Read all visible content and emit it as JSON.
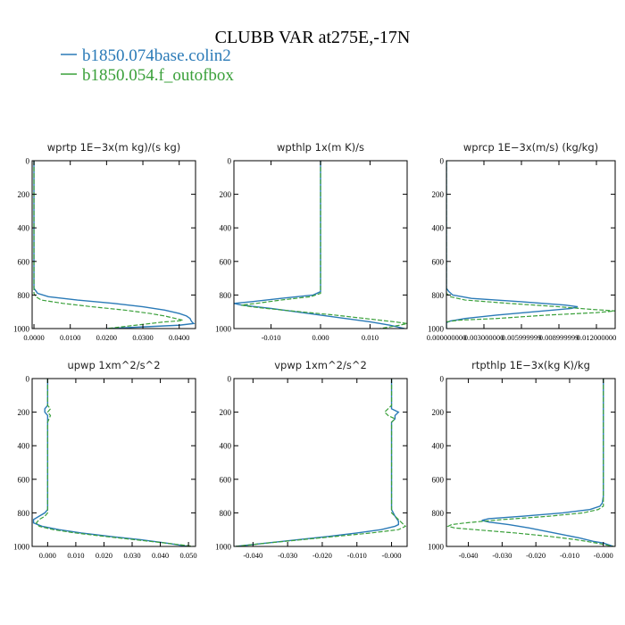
{
  "title": "CLUBB VAR at275E,-17N",
  "legend": [
    {
      "name": "b1850.074base.colin2",
      "color": "#2a7ab7"
    },
    {
      "name": "b1850.054.f_outofbox",
      "color": "#3aa03a"
    }
  ],
  "chart_data": [
    {
      "type": "line",
      "title": "wprtp  1E−3x(m kg)/(s kg)",
      "ylim": [
        1000,
        0
      ],
      "yticks": [
        "0",
        "200",
        "400",
        "600",
        "800",
        "1000"
      ],
      "xlim": [
        -0.0005,
        0.0445
      ],
      "xticks": [
        "0.0000",
        "0.0100",
        "0.0200",
        "0.0300",
        "0.0400"
      ],
      "xtick_values": [
        0,
        0.01,
        0.02,
        0.03,
        0.04
      ],
      "series": [
        {
          "name": "b1850.074base.colin2",
          "dash": false,
          "y": [
            0,
            200,
            400,
            600,
            760,
            775,
            790,
            810,
            830,
            850,
            870,
            890,
            910,
            925,
            940,
            950,
            960,
            970,
            980,
            990,
            1000
          ],
          "x": [
            0.0,
            0.0,
            0.0,
            0.0,
            0.0,
            0.0005,
            0.001,
            0.004,
            0.012,
            0.022,
            0.03,
            0.036,
            0.04,
            0.042,
            0.043,
            0.0432,
            0.0435,
            0.044,
            0.04,
            0.03,
            0.02
          ]
        },
        {
          "name": "b1850.054.f_outofbox",
          "dash": true,
          "y": [
            0,
            200,
            400,
            600,
            760,
            790,
            810,
            830,
            850,
            870,
            890,
            910,
            925,
            940,
            950,
            955,
            960,
            970,
            980,
            990,
            1000
          ],
          "x": [
            0.0,
            0.0,
            0.0,
            0.0,
            0.0,
            0.0,
            0.0005,
            0.002,
            0.008,
            0.016,
            0.025,
            0.032,
            0.036,
            0.039,
            0.041,
            0.0395,
            0.036,
            0.032,
            0.028,
            0.024,
            0.02
          ]
        }
      ]
    },
    {
      "type": "line",
      "title": "wpthlp  1x(m K)/s",
      "ylim": [
        1000,
        0
      ],
      "yticks": [
        "0",
        "200",
        "400",
        "600",
        "800",
        "1000"
      ],
      "xlim": [
        -0.0175,
        0.0175
      ],
      "xticks": [
        "-0.010",
        "0.000",
        "0.010"
      ],
      "xtick_values": [
        -0.01,
        0,
        0.01
      ],
      "series": [
        {
          "name": "b1850.074base.colin2",
          "dash": false,
          "y": [
            0,
            200,
            400,
            600,
            760,
            780,
            800,
            820,
            840,
            850,
            860,
            870,
            880,
            900,
            920,
            940,
            960,
            980,
            1000
          ],
          "x": [
            0.0,
            0.0,
            0.0,
            0.0,
            0.0,
            0.0,
            -0.0015,
            -0.008,
            -0.014,
            -0.0175,
            -0.016,
            -0.013,
            -0.01,
            -0.005,
            0.0,
            0.005,
            0.01,
            0.014,
            0.017
          ]
        },
        {
          "name": "b1850.054.f_outofbox",
          "dash": true,
          "y": [
            0,
            200,
            400,
            600,
            760,
            790,
            810,
            830,
            850,
            860,
            870,
            880,
            900,
            920,
            940,
            960,
            970,
            980,
            1000
          ],
          "x": [
            0.0,
            0.0,
            0.0,
            0.0,
            0.0,
            0.0,
            -0.002,
            -0.008,
            -0.013,
            -0.016,
            -0.014,
            -0.011,
            -0.004,
            0.003,
            0.009,
            0.015,
            0.0175,
            0.016,
            0.012
          ]
        }
      ]
    },
    {
      "type": "line",
      "title": "wprcp  1E−3x(m/s) (kg/kg)",
      "ylim": [
        1000,
        0
      ],
      "yticks": [
        "0",
        "200",
        "400",
        "600",
        "800",
        "1000"
      ],
      "xlim": [
        0.0,
        0.0135
      ],
      "xticks": [
        "0.000000000",
        "0.003000000",
        "0.005999999",
        "0.008999999",
        "0.012000000"
      ],
      "xtick_values": [
        0,
        0.003,
        0.006,
        0.009,
        0.012
      ],
      "series": [
        {
          "name": "b1850.074base.colin2",
          "dash": false,
          "y": [
            0,
            200,
            400,
            600,
            760,
            780,
            800,
            820,
            840,
            860,
            870,
            880,
            900,
            920,
            940,
            955,
            965,
            980,
            1000
          ],
          "x": [
            0.0,
            0.0,
            0.0,
            0.0,
            0.0,
            0.0002,
            0.0005,
            0.002,
            0.006,
            0.0095,
            0.0105,
            0.01,
            0.007,
            0.004,
            0.0015,
            0.0003,
            0.0,
            0.0,
            0.0
          ]
        },
        {
          "name": "b1850.054.f_outofbox",
          "dash": true,
          "y": [
            0,
            200,
            400,
            600,
            760,
            790,
            810,
            830,
            850,
            870,
            885,
            895,
            905,
            920,
            940,
            950,
            960,
            980,
            1000
          ],
          "x": [
            0.0,
            0.0,
            0.0,
            0.0,
            0.0,
            0.0,
            0.0003,
            0.0015,
            0.005,
            0.009,
            0.0115,
            0.0135,
            0.012,
            0.008,
            0.004,
            0.001,
            0.0,
            0.0,
            0.0
          ]
        }
      ]
    },
    {
      "type": "line",
      "title": "upwp  1xm^2/s^2",
      "ylim": [
        1000,
        0
      ],
      "yticks": [
        "0",
        "200",
        "400",
        "600",
        "800",
        "1000"
      ],
      "xlim": [
        -0.0055,
        0.0525
      ],
      "xticks": [
        "0.000",
        "0.010",
        "0.020",
        "0.030",
        "0.040",
        "0.050"
      ],
      "xtick_values": [
        0,
        0.01,
        0.02,
        0.03,
        0.04,
        0.05
      ],
      "series": [
        {
          "name": "b1850.074base.colin2",
          "dash": false,
          "y": [
            0,
            160,
            180,
            200,
            220,
            260,
            400,
            600,
            780,
            800,
            820,
            840,
            860,
            880,
            900,
            920,
            940,
            960,
            980,
            1000
          ],
          "x": [
            0.0,
            0.0,
            -0.001,
            -0.001,
            0.0,
            0.0,
            0.0,
            0.0,
            0.0,
            -0.001,
            -0.003,
            -0.005,
            -0.005,
            -0.002,
            0.004,
            0.012,
            0.022,
            0.033,
            0.042,
            0.05
          ]
        },
        {
          "name": "b1850.054.f_outofbox",
          "dash": true,
          "y": [
            0,
            160,
            180,
            200,
            220,
            260,
            400,
            600,
            800,
            820,
            840,
            860,
            880,
            900,
            920,
            940,
            960,
            980,
            1000
          ],
          "x": [
            0.0,
            0.0,
            0.001,
            0.0,
            0.001,
            0.0,
            0.0,
            0.0,
            0.0,
            -0.001,
            -0.003,
            -0.004,
            -0.003,
            0.002,
            0.01,
            0.02,
            0.031,
            0.042,
            0.052
          ]
        }
      ]
    },
    {
      "type": "line",
      "title": "vpwp  1xm^2/s^2",
      "ylim": [
        1000,
        0
      ],
      "yticks": [
        "0",
        "200",
        "400",
        "600",
        "800",
        "1000"
      ],
      "xlim": [
        -0.0455,
        0.0045
      ],
      "xticks": [
        "-0.040",
        "-0.030",
        "-0.020",
        "-0.010",
        "-0.000"
      ],
      "xtick_values": [
        -0.04,
        -0.03,
        -0.02,
        -0.01,
        0
      ],
      "series": [
        {
          "name": "b1850.074base.colin2",
          "dash": false,
          "y": [
            0,
            160,
            180,
            200,
            220,
            240,
            260,
            300,
            400,
            600,
            780,
            820,
            850,
            870,
            880,
            900,
            920,
            940,
            960,
            980,
            1000
          ],
          "x": [
            0.0,
            0.0,
            0.0,
            0.002,
            0.001,
            0.001,
            0.0,
            0.0,
            0.0,
            0.0,
            0.0,
            0.001,
            0.002,
            0.002,
            0.001,
            -0.003,
            -0.01,
            -0.018,
            -0.027,
            -0.036,
            -0.045
          ]
        },
        {
          "name": "b1850.054.f_outofbox",
          "dash": true,
          "y": [
            0,
            160,
            180,
            200,
            220,
            240,
            260,
            300,
            400,
            600,
            800,
            840,
            860,
            880,
            900,
            920,
            940,
            960,
            980,
            1000
          ],
          "x": [
            0.0,
            0.0,
            -0.001,
            -0.002,
            -0.001,
            0.001,
            0.0,
            0.0,
            0.0,
            0.0,
            0.0,
            0.002,
            0.003,
            0.004,
            0.002,
            -0.006,
            -0.016,
            -0.026,
            -0.036,
            -0.045
          ]
        }
      ]
    },
    {
      "type": "line",
      "title": "rtpthlp  1E−3x(kg K)/kg",
      "ylim": [
        1000,
        0
      ],
      "yticks": [
        "0",
        "200",
        "400",
        "600",
        "800",
        "1000"
      ],
      "xlim": [
        -0.0465,
        0.0035
      ],
      "xticks": [
        "-0.040",
        "-0.030",
        "-0.020",
        "-0.010",
        "-0.000"
      ],
      "xtick_values": [
        -0.04,
        -0.03,
        -0.02,
        -0.01,
        0
      ],
      "series": [
        {
          "name": "b1850.074base.colin2",
          "dash": false,
          "y": [
            0,
            200,
            400,
            600,
            700,
            740,
            760,
            780,
            800,
            820,
            835,
            845,
            855,
            870,
            890,
            910,
            930,
            950,
            970,
            980,
            1000
          ],
          "x": [
            0.0,
            0.0,
            0.0,
            0.0,
            0.0,
            -0.0003,
            -0.001,
            -0.004,
            -0.012,
            -0.024,
            -0.034,
            -0.036,
            -0.034,
            -0.028,
            -0.022,
            -0.017,
            -0.012,
            -0.007,
            -0.003,
            0.0,
            0.003
          ]
        },
        {
          "name": "b1850.054.f_outofbox",
          "dash": true,
          "y": [
            0,
            200,
            400,
            600,
            700,
            760,
            780,
            800,
            820,
            840,
            860,
            870,
            880,
            890,
            900,
            920,
            940,
            960,
            980,
            1000
          ],
          "x": [
            0.0,
            0.0,
            0.0,
            0.0,
            0.0,
            0.0,
            -0.0015,
            -0.006,
            -0.016,
            -0.03,
            -0.041,
            -0.045,
            -0.046,
            -0.044,
            -0.038,
            -0.026,
            -0.016,
            -0.008,
            -0.002,
            0.003
          ]
        }
      ]
    }
  ]
}
